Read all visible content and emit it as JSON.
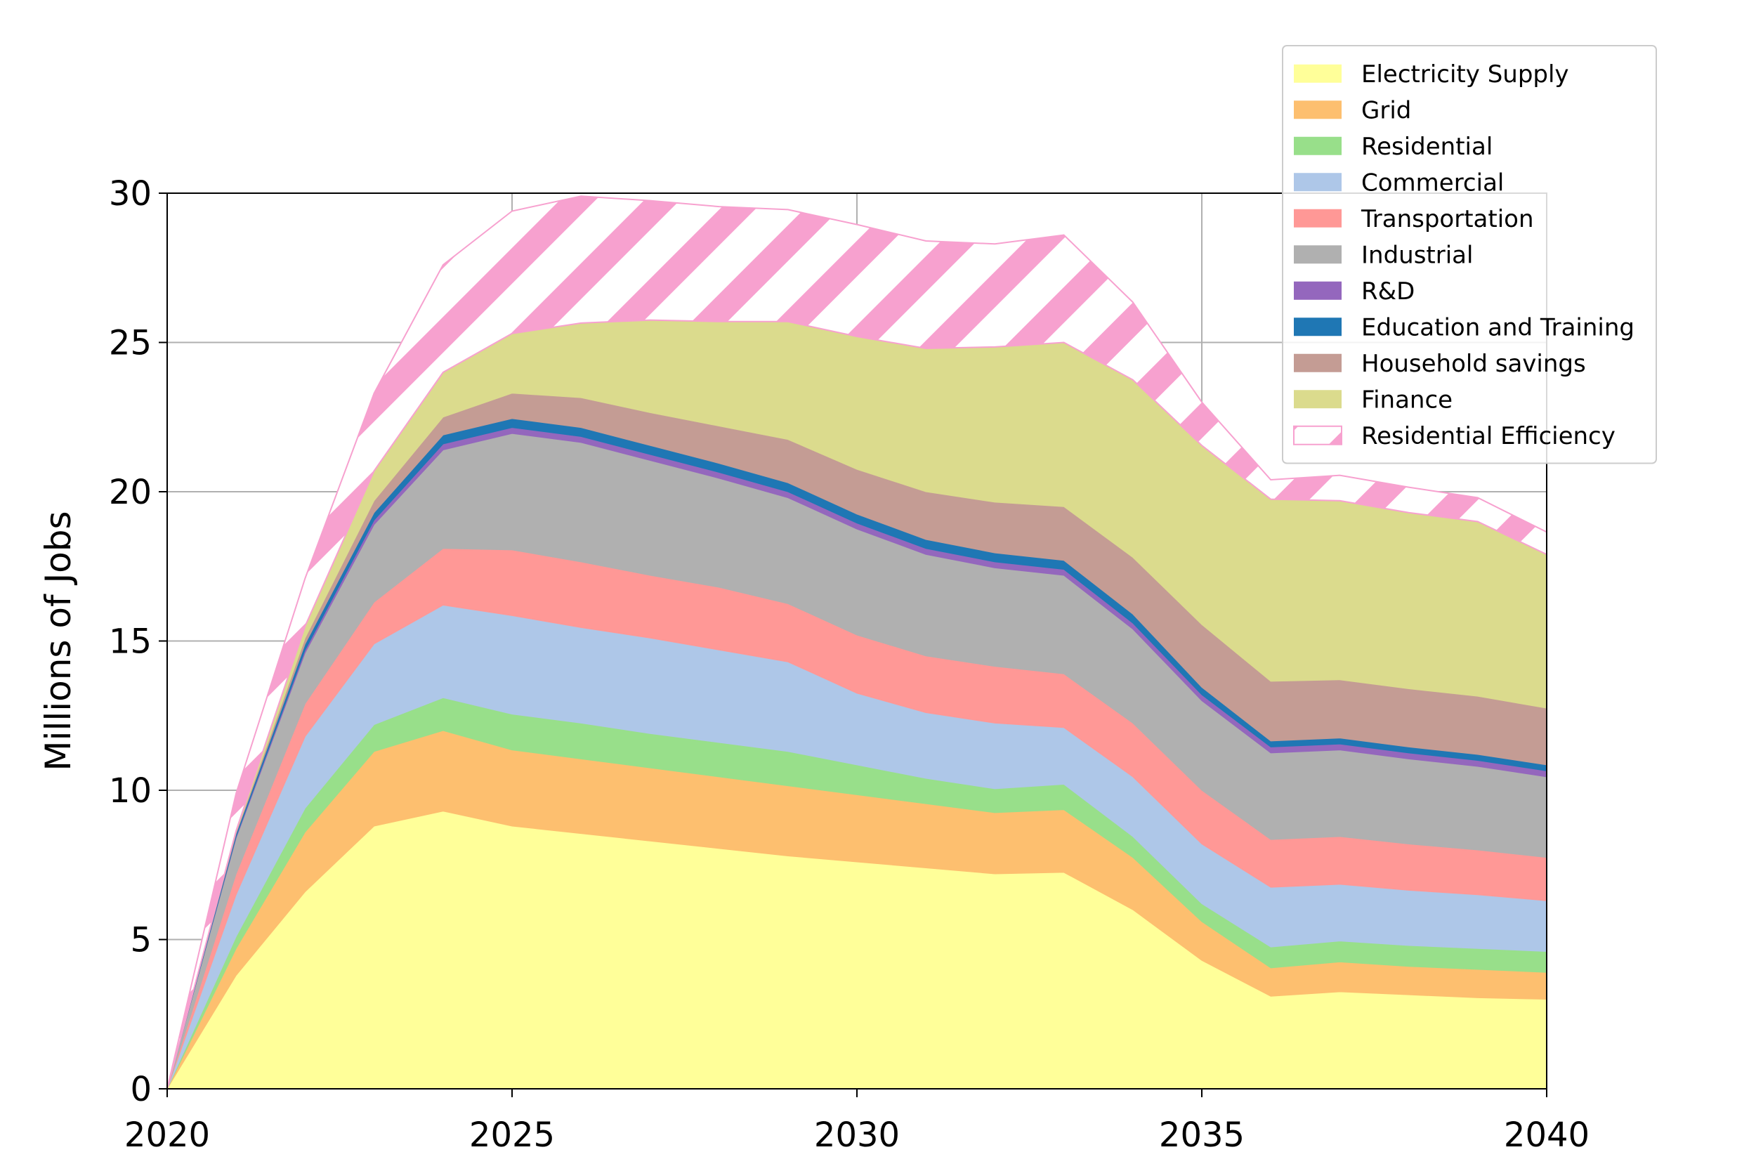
{
  "chart_data": {
    "type": "area",
    "stacked": true,
    "title": "",
    "xlabel": "",
    "ylabel": "Millions of Jobs",
    "xlim": [
      2020,
      2040
    ],
    "ylim": [
      0,
      30
    ],
    "grid": true,
    "legend_position": "top-right",
    "xticks": [
      2020,
      2025,
      2030,
      2035,
      2040
    ],
    "yticks": [
      0,
      5,
      10,
      15,
      20,
      25,
      30
    ],
    "x": [
      2020,
      2021,
      2022,
      2023,
      2024,
      2025,
      2026,
      2027,
      2028,
      2029,
      2030,
      2031,
      2032,
      2033,
      2034,
      2035,
      2036,
      2037,
      2038,
      2039,
      2040
    ],
    "series": [
      {
        "name": "Electricity Supply",
        "color": "#ffff99",
        "values": [
          0,
          3.8,
          6.6,
          8.8,
          9.3,
          8.8,
          8.55,
          8.3,
          8.05,
          7.8,
          7.6,
          7.4,
          7.2,
          7.25,
          6.0,
          4.3,
          3.1,
          3.25,
          3.15,
          3.05,
          3.0
        ]
      },
      {
        "name": "Grid",
        "color": "#fdbf6f",
        "values": [
          0,
          0.9,
          2.0,
          2.5,
          2.7,
          2.55,
          2.5,
          2.45,
          2.4,
          2.35,
          2.25,
          2.15,
          2.05,
          2.1,
          1.75,
          1.3,
          0.95,
          1.0,
          0.95,
          0.95,
          0.9
        ]
      },
      {
        "name": "Residential",
        "color": "#98df8a",
        "values": [
          0,
          0.4,
          0.8,
          0.9,
          1.1,
          1.2,
          1.2,
          1.15,
          1.15,
          1.15,
          1.0,
          0.85,
          0.8,
          0.85,
          0.7,
          0.6,
          0.7,
          0.7,
          0.7,
          0.7,
          0.7
        ]
      },
      {
        "name": "Commercial",
        "color": "#aec7e8",
        "values": [
          0,
          1.4,
          2.4,
          2.7,
          3.1,
          3.3,
          3.2,
          3.2,
          3.1,
          3.0,
          2.4,
          2.2,
          2.2,
          1.9,
          2.0,
          2.0,
          2.0,
          1.9,
          1.85,
          1.8,
          1.7
        ]
      },
      {
        "name": "Transportation",
        "color": "#ff9896",
        "values": [
          0,
          0.7,
          1.1,
          1.4,
          1.9,
          2.2,
          2.2,
          2.1,
          2.1,
          1.95,
          1.95,
          1.9,
          1.9,
          1.8,
          1.8,
          1.8,
          1.6,
          1.6,
          1.55,
          1.5,
          1.45
        ]
      },
      {
        "name": "Industrial",
        "color": "#b0b0b0",
        "values": [
          0,
          1.2,
          1.7,
          2.6,
          3.3,
          3.9,
          4.0,
          3.85,
          3.65,
          3.55,
          3.55,
          3.4,
          3.3,
          3.3,
          3.15,
          3.0,
          2.9,
          2.9,
          2.85,
          2.8,
          2.7
        ]
      },
      {
        "name": "R&D",
        "color": "#9467bd",
        "values": [
          0,
          0.05,
          0.1,
          0.15,
          0.2,
          0.2,
          0.2,
          0.2,
          0.2,
          0.2,
          0.2,
          0.2,
          0.2,
          0.2,
          0.2,
          0.2,
          0.2,
          0.2,
          0.2,
          0.2,
          0.2
        ]
      },
      {
        "name": "Education and Training",
        "color": "#1f77b4",
        "values": [
          0,
          0.1,
          0.2,
          0.25,
          0.3,
          0.3,
          0.3,
          0.3,
          0.3,
          0.3,
          0.3,
          0.3,
          0.3,
          0.3,
          0.3,
          0.25,
          0.2,
          0.2,
          0.2,
          0.2,
          0.2
        ]
      },
      {
        "name": "Household savings",
        "color": "#c49c94",
        "values": [
          0,
          0.05,
          0.2,
          0.4,
          0.6,
          0.85,
          1.0,
          1.1,
          1.25,
          1.45,
          1.5,
          1.6,
          1.7,
          1.8,
          1.9,
          2.1,
          2.0,
          1.95,
          1.95,
          1.95,
          1.9
        ]
      },
      {
        "name": "Finance",
        "color": "#dbdb8d",
        "values": [
          0,
          0.05,
          0.4,
          1.0,
          1.5,
          2.0,
          2.5,
          3.1,
          3.5,
          3.95,
          4.45,
          4.8,
          5.2,
          5.5,
          5.95,
          6.0,
          6.1,
          6.0,
          5.9,
          5.85,
          5.15
        ]
      },
      {
        "name": "Residential Efficiency",
        "color": "#f7a1cf",
        "hatch": true,
        "values": [
          0,
          1.25,
          1.6,
          2.6,
          3.6,
          4.1,
          4.25,
          4.0,
          3.85,
          3.75,
          3.75,
          3.6,
          3.45,
          3.6,
          2.6,
          1.45,
          0.65,
          0.85,
          0.85,
          0.8,
          0.75
        ]
      }
    ]
  }
}
